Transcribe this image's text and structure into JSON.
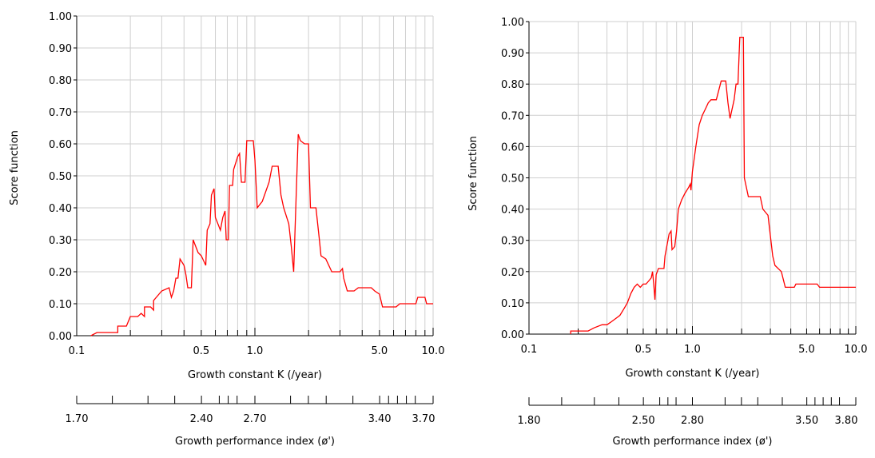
{
  "chart_data": [
    {
      "type": "line",
      "x_scale": "log",
      "xlim": [
        0.1,
        10.0
      ],
      "ylim": [
        0,
        1.0
      ],
      "grid": true,
      "ylabel": "Score function",
      "xlabel": "Growth constant K (/year)",
      "x_tick_labels": [
        {
          "value": 0.1,
          "label": "0.1"
        },
        {
          "value": 0.5,
          "label": "0.5"
        },
        {
          "value": 1.0,
          "label": "1.0"
        },
        {
          "value": 5.0,
          "label": "5.0"
        },
        {
          "value": 10.0,
          "label": "10.0"
        }
      ],
      "y_tick_labels": [
        "0.00",
        "0.10",
        "0.20",
        "0.30",
        "0.40",
        "0.50",
        "0.60",
        "0.70",
        "0.80",
        "0.90",
        "1.00"
      ],
      "secondary_axis": {
        "label": "Growth performance index (ø')",
        "tick_labels": [
          "1.70",
          "2.40",
          "2.70",
          "3.40",
          "3.70"
        ]
      },
      "line_color": "#ff0000",
      "series": [
        {
          "points": [
            [
              0.12,
              0.0
            ],
            [
              0.13,
              0.01
            ],
            [
              0.17,
              0.01
            ],
            [
              0.17,
              0.03
            ],
            [
              0.19,
              0.03
            ],
            [
              0.2,
              0.06
            ],
            [
              0.22,
              0.06
            ],
            [
              0.23,
              0.07
            ],
            [
              0.24,
              0.06
            ],
            [
              0.24,
              0.09
            ],
            [
              0.26,
              0.09
            ],
            [
              0.27,
              0.08
            ],
            [
              0.27,
              0.11
            ],
            [
              0.3,
              0.14
            ],
            [
              0.33,
              0.15
            ],
            [
              0.34,
              0.12
            ],
            [
              0.35,
              0.14
            ],
            [
              0.36,
              0.18
            ],
            [
              0.37,
              0.18
            ],
            [
              0.38,
              0.24
            ],
            [
              0.4,
              0.22
            ],
            [
              0.41,
              0.19
            ],
            [
              0.42,
              0.15
            ],
            [
              0.44,
              0.15
            ],
            [
              0.45,
              0.3
            ],
            [
              0.48,
              0.26
            ],
            [
              0.5,
              0.25
            ],
            [
              0.53,
              0.22
            ],
            [
              0.54,
              0.33
            ],
            [
              0.56,
              0.35
            ],
            [
              0.57,
              0.44
            ],
            [
              0.59,
              0.46
            ],
            [
              0.6,
              0.37
            ],
            [
              0.62,
              0.35
            ],
            [
              0.64,
              0.33
            ],
            [
              0.66,
              0.37
            ],
            [
              0.68,
              0.39
            ],
            [
              0.69,
              0.3
            ],
            [
              0.71,
              0.3
            ],
            [
              0.72,
              0.47
            ],
            [
              0.75,
              0.47
            ],
            [
              0.76,
              0.52
            ],
            [
              0.79,
              0.55
            ],
            [
              0.8,
              0.56
            ],
            [
              0.82,
              0.57
            ],
            [
              0.84,
              0.48
            ],
            [
              0.88,
              0.48
            ],
            [
              0.9,
              0.61
            ],
            [
              0.98,
              0.61
            ],
            [
              1.0,
              0.55
            ],
            [
              1.03,
              0.4
            ],
            [
              1.1,
              0.42
            ],
            [
              1.2,
              0.48
            ],
            [
              1.25,
              0.53
            ],
            [
              1.35,
              0.53
            ],
            [
              1.4,
              0.44
            ],
            [
              1.45,
              0.4
            ],
            [
              1.55,
              0.35
            ],
            [
              1.6,
              0.28
            ],
            [
              1.65,
              0.2
            ],
            [
              1.7,
              0.42
            ],
            [
              1.75,
              0.63
            ],
            [
              1.8,
              0.61
            ],
            [
              1.9,
              0.6
            ],
            [
              2.0,
              0.6
            ],
            [
              2.05,
              0.4
            ],
            [
              2.2,
              0.4
            ],
            [
              2.3,
              0.3
            ],
            [
              2.35,
              0.25
            ],
            [
              2.5,
              0.24
            ],
            [
              2.7,
              0.2
            ],
            [
              3.0,
              0.2
            ],
            [
              3.1,
              0.21
            ],
            [
              3.15,
              0.18
            ],
            [
              3.3,
              0.14
            ],
            [
              3.6,
              0.14
            ],
            [
              3.8,
              0.15
            ],
            [
              4.5,
              0.15
            ],
            [
              4.7,
              0.14
            ],
            [
              5.0,
              0.13
            ],
            [
              5.2,
              0.09
            ],
            [
              6.2,
              0.09
            ],
            [
              6.5,
              0.1
            ],
            [
              8.0,
              0.1
            ],
            [
              8.2,
              0.12
            ],
            [
              9.0,
              0.12
            ],
            [
              9.2,
              0.1
            ],
            [
              10.0,
              0.1
            ]
          ]
        }
      ]
    },
    {
      "type": "line",
      "x_scale": "log",
      "xlim": [
        0.1,
        10.0
      ],
      "ylim": [
        0,
        1.0
      ],
      "grid": true,
      "ylabel": "Score function",
      "xlabel": "Growth constant K (/year)",
      "x_tick_labels": [
        {
          "value": 0.1,
          "label": "0.1"
        },
        {
          "value": 0.5,
          "label": "0.5"
        },
        {
          "value": 1.0,
          "label": "1.0"
        },
        {
          "value": 5.0,
          "label": "5.0"
        },
        {
          "value": 10.0,
          "label": "10.0"
        }
      ],
      "y_tick_labels": [
        "0.00",
        "0.10",
        "0.20",
        "0.30",
        "0.40",
        "0.50",
        "0.60",
        "0.70",
        "0.80",
        "0.90",
        "1.00"
      ],
      "secondary_axis": {
        "label": "Growth performance index (ø')",
        "tick_labels": [
          "1.80",
          "2.50",
          "2.80",
          "3.50",
          "3.80"
        ]
      },
      "line_color": "#ff0000",
      "series": [
        {
          "points": [
            [
              0.18,
              0.0
            ],
            [
              0.18,
              0.01
            ],
            [
              0.23,
              0.01
            ],
            [
              0.25,
              0.02
            ],
            [
              0.28,
              0.03
            ],
            [
              0.3,
              0.03
            ],
            [
              0.32,
              0.04
            ],
            [
              0.34,
              0.05
            ],
            [
              0.36,
              0.06
            ],
            [
              0.38,
              0.08
            ],
            [
              0.4,
              0.1
            ],
            [
              0.42,
              0.13
            ],
            [
              0.44,
              0.15
            ],
            [
              0.46,
              0.16
            ],
            [
              0.48,
              0.15
            ],
            [
              0.5,
              0.16
            ],
            [
              0.52,
              0.16
            ],
            [
              0.54,
              0.17
            ],
            [
              0.56,
              0.18
            ],
            [
              0.57,
              0.2
            ],
            [
              0.58,
              0.16
            ],
            [
              0.59,
              0.11
            ],
            [
              0.6,
              0.19
            ],
            [
              0.62,
              0.21
            ],
            [
              0.67,
              0.21
            ],
            [
              0.68,
              0.25
            ],
            [
              0.72,
              0.32
            ],
            [
              0.74,
              0.33
            ],
            [
              0.75,
              0.27
            ],
            [
              0.78,
              0.28
            ],
            [
              0.8,
              0.33
            ],
            [
              0.82,
              0.4
            ],
            [
              0.86,
              0.43
            ],
            [
              0.9,
              0.45
            ],
            [
              0.95,
              0.47
            ],
            [
              0.97,
              0.48
            ],
            [
              0.98,
              0.46
            ],
            [
              1.0,
              0.52
            ],
            [
              1.05,
              0.6
            ],
            [
              1.1,
              0.67
            ],
            [
              1.15,
              0.7
            ],
            [
              1.2,
              0.72
            ],
            [
              1.25,
              0.74
            ],
            [
              1.3,
              0.75
            ],
            [
              1.4,
              0.75
            ],
            [
              1.5,
              0.81
            ],
            [
              1.6,
              0.81
            ],
            [
              1.65,
              0.74
            ],
            [
              1.7,
              0.69
            ],
            [
              1.8,
              0.75
            ],
            [
              1.85,
              0.8
            ],
            [
              1.9,
              0.8
            ],
            [
              1.95,
              0.95
            ],
            [
              2.05,
              0.95
            ],
            [
              2.08,
              0.5
            ],
            [
              2.2,
              0.44
            ],
            [
              2.6,
              0.44
            ],
            [
              2.7,
              0.4
            ],
            [
              2.9,
              0.38
            ],
            [
              3.1,
              0.25
            ],
            [
              3.2,
              0.22
            ],
            [
              3.5,
              0.2
            ],
            [
              3.7,
              0.15
            ],
            [
              4.2,
              0.15
            ],
            [
              4.3,
              0.16
            ],
            [
              5.8,
              0.16
            ],
            [
              6.0,
              0.15
            ],
            [
              10.0,
              0.15
            ]
          ]
        }
      ]
    }
  ]
}
